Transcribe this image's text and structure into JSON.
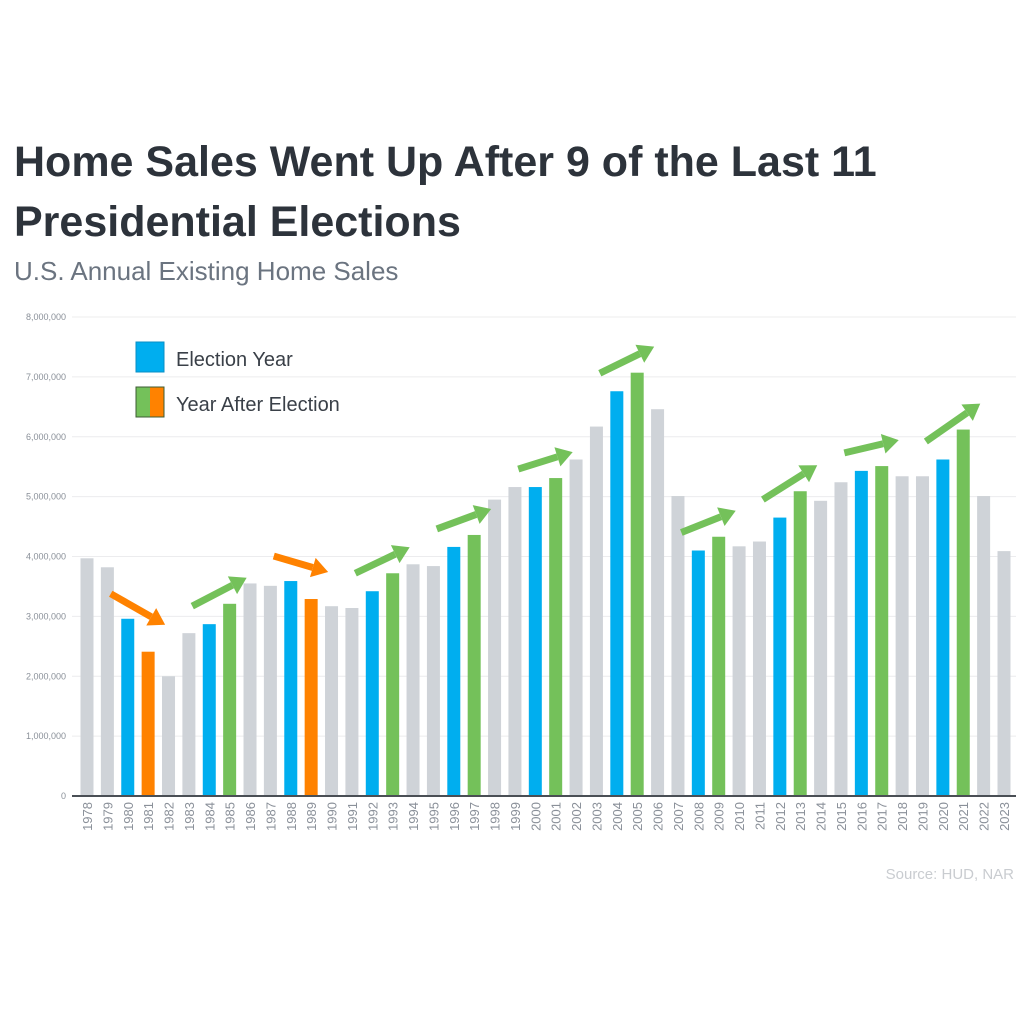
{
  "chart_data": {
    "type": "bar",
    "title": "Home Sales Went Up After 9 of the Last 11 Presidential Elections",
    "subtitle": "U.S. Annual Existing Home Sales",
    "xlabel": "",
    "ylabel": "",
    "ylim": [
      0,
      8000000
    ],
    "yticks": [
      "0",
      "1,000,000",
      "2,000,000",
      "3,000,000",
      "4,000,000",
      "5,000,000",
      "6,000,000",
      "7,000,000",
      "8,000,000"
    ],
    "ytick_values": [
      0,
      1000000,
      2000000,
      3000000,
      4000000,
      5000000,
      6000000,
      7000000,
      8000000
    ],
    "grid": true,
    "categories": [
      "1978",
      "1979",
      "1980",
      "1981",
      "1982",
      "1983",
      "1984",
      "1985",
      "1986",
      "1987",
      "1988",
      "1989",
      "1990",
      "1991",
      "1992",
      "1993",
      "1994",
      "1995",
      "1996",
      "1997",
      "1998",
      "1999",
      "2000",
      "2001",
      "2002",
      "2003",
      "2004",
      "2005",
      "2006",
      "2007",
      "2008",
      "2009",
      "2010",
      "2011",
      "2012",
      "2013",
      "2014",
      "2015",
      "2016",
      "2017",
      "2018",
      "2019",
      "2020",
      "2021",
      "2022",
      "2023"
    ],
    "values": [
      3970000,
      3820000,
      2960000,
      2410000,
      2000000,
      2720000,
      2870000,
      3210000,
      3550000,
      3510000,
      3590000,
      3290000,
      3170000,
      3140000,
      3420000,
      3720000,
      3870000,
      3840000,
      4160000,
      4360000,
      4950000,
      5160000,
      5160000,
      5310000,
      5620000,
      6170000,
      6760000,
      7070000,
      6460000,
      5010000,
      4100000,
      4330000,
      4170000,
      4250000,
      4650000,
      5090000,
      4930000,
      5240000,
      5430000,
      5510000,
      5340000,
      5340000,
      5620000,
      6120000,
      5010000,
      4090000
    ],
    "election_years": [
      "1980",
      "1984",
      "1988",
      "1992",
      "1996",
      "2000",
      "2004",
      "2008",
      "2012",
      "2016",
      "2020"
    ],
    "post_election_down_years": [
      "1981",
      "1989"
    ],
    "legend": {
      "placement": "top-left",
      "items": [
        {
          "label": "Election Year",
          "colors": [
            "#00aeef"
          ]
        },
        {
          "label": "Year After Election",
          "colors": [
            "#74c15a",
            "#ff8200"
          ]
        }
      ]
    },
    "colors": {
      "other": "#cfd3d8",
      "election": "#00aeef",
      "after_up": "#74c15a",
      "after_down": "#ff8200",
      "title": "#2d333b",
      "subtitle": "#6b7480"
    },
    "annotations": "arrows from each election year to the following year: green up-arrows where sales rose, orange down-arrows where sales fell"
  },
  "source": "Source: HUD, NAR"
}
